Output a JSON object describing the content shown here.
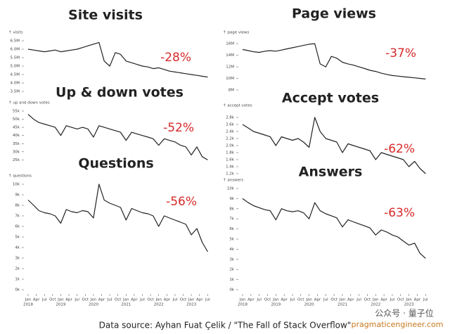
{
  "chart_data": [
    {
      "type": "line",
      "title": "Site visits",
      "y_label": "↑ visits",
      "annotation": "-28%",
      "color": "#222",
      "x": [
        2018,
        2018.17,
        2018.33,
        2018.5,
        2018.67,
        2018.83,
        2019,
        2019.17,
        2019.33,
        2019.5,
        2019.67,
        2019.83,
        2020,
        2020.17,
        2020.33,
        2020.5,
        2020.67,
        2020.83,
        2021,
        2021.17,
        2021.33,
        2021.5,
        2021.67,
        2021.83,
        2022,
        2022.17,
        2022.33,
        2022.5,
        2022.67,
        2022.83,
        2023,
        2023.17,
        2023.33,
        2023.5
      ],
      "values": [
        6000000,
        5950000,
        5900000,
        5850000,
        5900000,
        5950000,
        5850000,
        5900000,
        5950000,
        6000000,
        6100000,
        6200000,
        6300000,
        6400000,
        5300000,
        5000000,
        5800000,
        5700000,
        5300000,
        5200000,
        5100000,
        5000000,
        4950000,
        4850000,
        4900000,
        4800000,
        4700000,
        4650000,
        4600000,
        4550000,
        4500000,
        4450000,
        4400000,
        4350000
      ],
      "xlim": [
        2018,
        2023.6
      ],
      "ylim": [
        3500000,
        6500000
      ],
      "yticks": [
        {
          "value": 3500000,
          "label": "3.5M"
        },
        {
          "value": 4000000,
          "label": "4.0M"
        },
        {
          "value": 4500000,
          "label": "4.5M"
        },
        {
          "value": 5000000,
          "label": "5.0M"
        },
        {
          "value": 5500000,
          "label": "5.5M"
        },
        {
          "value": 6000000,
          "label": "6.0M"
        },
        {
          "value": 6500000,
          "label": "6.5M"
        }
      ]
    },
    {
      "type": "line",
      "title": "Page views",
      "y_label": "↑ page views",
      "annotation": "-37%",
      "color": "#222",
      "x": [
        2018,
        2018.17,
        2018.33,
        2018.5,
        2018.67,
        2018.83,
        2019,
        2019.17,
        2019.33,
        2019.5,
        2019.67,
        2019.83,
        2020,
        2020.17,
        2020.33,
        2020.5,
        2020.67,
        2020.83,
        2021,
        2021.17,
        2021.33,
        2021.5,
        2021.67,
        2021.83,
        2022,
        2022.17,
        2022.33,
        2022.5,
        2022.67,
        2022.83,
        2023,
        2023.17,
        2023.33,
        2023.5
      ],
      "values": [
        15000000,
        14800000,
        14600000,
        14500000,
        14700000,
        14800000,
        14700000,
        14900000,
        15100000,
        15300000,
        15500000,
        15700000,
        15900000,
        16000000,
        12500000,
        12000000,
        13800000,
        13500000,
        12800000,
        12500000,
        12300000,
        12000000,
        11700000,
        11400000,
        11200000,
        10900000,
        10700000,
        10500000,
        10400000,
        10300000,
        10200000,
        10100000,
        10000000,
        9900000
      ],
      "xlim": [
        2018,
        2023.6
      ],
      "ylim": [
        8000000,
        16500000
      ],
      "yticks": [
        {
          "value": 8000000,
          "label": "8M"
        },
        {
          "value": 10000000,
          "label": "10M"
        },
        {
          "value": 12000000,
          "label": "12M"
        },
        {
          "value": 14000000,
          "label": "14M"
        },
        {
          "value": 16000000,
          "label": "16M"
        }
      ]
    },
    {
      "type": "line",
      "title": "Up & down votes",
      "y_label": "↑ up and down votes",
      "annotation": "-52%",
      "color": "#222",
      "x": [
        2018,
        2018.17,
        2018.33,
        2018.5,
        2018.67,
        2018.83,
        2019,
        2019.17,
        2019.33,
        2019.5,
        2019.67,
        2019.83,
        2020,
        2020.17,
        2020.33,
        2020.5,
        2020.67,
        2020.83,
        2021,
        2021.17,
        2021.33,
        2021.5,
        2021.67,
        2021.83,
        2022,
        2022.17,
        2022.33,
        2022.5,
        2022.67,
        2022.83,
        2023,
        2023.17,
        2023.33,
        2023.5
      ],
      "values": [
        53000,
        50000,
        48000,
        47000,
        46000,
        45000,
        40000,
        46000,
        45000,
        44000,
        45000,
        44000,
        39000,
        46000,
        45000,
        44000,
        43000,
        42000,
        37000,
        42000,
        41000,
        40000,
        39000,
        38000,
        34000,
        38000,
        37000,
        36000,
        34000,
        33000,
        28000,
        33000,
        27000,
        25000
      ],
      "xlim": [
        2018,
        2023.6
      ],
      "ylim": [
        23000,
        55000
      ],
      "yticks": [
        {
          "value": 25000,
          "label": "25k"
        },
        {
          "value": 30000,
          "label": "30k"
        },
        {
          "value": 35000,
          "label": "35k"
        },
        {
          "value": 40000,
          "label": "40k"
        },
        {
          "value": 45000,
          "label": "45k"
        },
        {
          "value": 50000,
          "label": "50k"
        },
        {
          "value": 55000,
          "label": "55k"
        }
      ]
    },
    {
      "type": "line",
      "title": "Accept votes",
      "y_label": "↑ accept votes",
      "annotation": "-62%",
      "color": "#222",
      "x": [
        2018,
        2018.17,
        2018.33,
        2018.5,
        2018.67,
        2018.83,
        2019,
        2019.17,
        2019.33,
        2019.5,
        2019.67,
        2019.83,
        2020,
        2020.17,
        2020.33,
        2020.5,
        2020.67,
        2020.83,
        2021,
        2021.17,
        2021.33,
        2021.5,
        2021.67,
        2021.83,
        2022,
        2022.17,
        2022.33,
        2022.5,
        2022.67,
        2022.83,
        2023,
        2023.17,
        2023.33,
        2023.5
      ],
      "values": [
        2600,
        2500,
        2400,
        2350,
        2300,
        2250,
        2000,
        2250,
        2200,
        2150,
        2200,
        2100,
        1950,
        2800,
        2400,
        2200,
        2150,
        2100,
        1800,
        2050,
        2000,
        1950,
        1900,
        1850,
        1600,
        1800,
        1750,
        1700,
        1650,
        1600,
        1400,
        1550,
        1350,
        1200
      ],
      "xlim": [
        2018,
        2023.6
      ],
      "ylim": [
        1100,
        2900
      ],
      "yticks": [
        {
          "value": 1200,
          "label": "1.2k"
        },
        {
          "value": 1400,
          "label": "1.4k"
        },
        {
          "value": 1600,
          "label": "1.6k"
        },
        {
          "value": 1800,
          "label": "1.8k"
        },
        {
          "value": 2000,
          "label": "2.0k"
        },
        {
          "value": 2200,
          "label": "2.2k"
        },
        {
          "value": 2400,
          "label": "2.4k"
        },
        {
          "value": 2600,
          "label": "2.6k"
        },
        {
          "value": 2800,
          "label": "2.8k"
        }
      ]
    },
    {
      "type": "line",
      "title": "Questions",
      "y_label": "↑ questions",
      "annotation": "-56%",
      "color": "#222",
      "x": [
        2018,
        2018.17,
        2018.33,
        2018.5,
        2018.67,
        2018.83,
        2019,
        2019.17,
        2019.33,
        2019.5,
        2019.67,
        2019.83,
        2020,
        2020.17,
        2020.33,
        2020.5,
        2020.67,
        2020.83,
        2021,
        2021.17,
        2021.33,
        2021.5,
        2021.67,
        2021.83,
        2022,
        2022.17,
        2022.33,
        2022.5,
        2022.67,
        2022.83,
        2023,
        2023.17,
        2023.33,
        2023.5
      ],
      "values": [
        8500,
        8000,
        7500,
        7300,
        7200,
        7000,
        6300,
        7600,
        7400,
        7300,
        7500,
        7400,
        6800,
        10000,
        8500,
        8200,
        8000,
        7800,
        6600,
        7700,
        7500,
        7300,
        7200,
        7000,
        6000,
        7000,
        6800,
        6600,
        6400,
        6200,
        5200,
        5800,
        4500,
        3600
      ],
      "xlim": [
        2018,
        2023.6
      ],
      "ylim": [
        0,
        10000
      ],
      "yticks": [
        {
          "value": 0,
          "label": "0k"
        },
        {
          "value": 1000,
          "label": "1k"
        },
        {
          "value": 2000,
          "label": "2k"
        },
        {
          "value": 3000,
          "label": "3k"
        },
        {
          "value": 4000,
          "label": "4k"
        },
        {
          "value": 5000,
          "label": "5k"
        },
        {
          "value": 6000,
          "label": "6k"
        },
        {
          "value": 7000,
          "label": "7k"
        },
        {
          "value": 8000,
          "label": "8k"
        },
        {
          "value": 9000,
          "label": "9k"
        },
        {
          "value": 10000,
          "label": "10k"
        }
      ],
      "xticks": [
        {
          "value": 2018,
          "label": "Jan"
        },
        {
          "value": 2018.25,
          "label": "Apr"
        },
        {
          "value": 2018.5,
          "label": "Jul"
        },
        {
          "value": 2018.75,
          "label": "Oct"
        },
        {
          "value": 2019,
          "label": "Jan"
        },
        {
          "value": 2019.25,
          "label": "Apr"
        },
        {
          "value": 2019.5,
          "label": "Jul"
        },
        {
          "value": 2019.75,
          "label": "Oct"
        },
        {
          "value": 2020,
          "label": "Jan"
        },
        {
          "value": 2020.25,
          "label": "Apr"
        },
        {
          "value": 2020.5,
          "label": "Jul"
        },
        {
          "value": 2020.75,
          "label": "Oct"
        },
        {
          "value": 2021,
          "label": "Jan"
        },
        {
          "value": 2021.25,
          "label": "Apr"
        },
        {
          "value": 2021.5,
          "label": "Jul"
        },
        {
          "value": 2021.75,
          "label": "Oct"
        },
        {
          "value": 2022,
          "label": "Jan"
        },
        {
          "value": 2022.25,
          "label": "Apr"
        },
        {
          "value": 2022.5,
          "label": "Jul"
        },
        {
          "value": 2022.75,
          "label": "Oct"
        },
        {
          "value": 2023,
          "label": "Jan"
        },
        {
          "value": 2023.25,
          "label": "Apr"
        },
        {
          "value": 2023.5,
          "label": "Jul"
        }
      ],
      "year_ticks": [
        2018,
        2019,
        2020,
        2021,
        2022,
        2023
      ]
    },
    {
      "type": "line",
      "title": "Answers",
      "y_label": "↑ answers",
      "annotation": "-63%",
      "color": "#222",
      "x": [
        2018,
        2018.17,
        2018.33,
        2018.5,
        2018.67,
        2018.83,
        2019,
        2019.17,
        2019.33,
        2019.5,
        2019.67,
        2019.83,
        2020,
        2020.17,
        2020.33,
        2020.5,
        2020.67,
        2020.83,
        2021,
        2021.17,
        2021.33,
        2021.5,
        2021.67,
        2021.83,
        2022,
        2022.17,
        2022.33,
        2022.5,
        2022.67,
        2022.83,
        2023,
        2023.17,
        2023.33,
        2023.5
      ],
      "values": [
        9000,
        8600,
        8300,
        8100,
        7900,
        7800,
        6900,
        8000,
        7800,
        7700,
        7800,
        7600,
        7000,
        8600,
        7800,
        7500,
        7300,
        7100,
        6200,
        6900,
        6700,
        6500,
        6300,
        6100,
        5400,
        5900,
        5700,
        5400,
        5200,
        4800,
        4400,
        4600,
        3600,
        3100
      ],
      "xlim": [
        2018,
        2023.6
      ],
      "ylim": [
        0,
        10000
      ],
      "yticks": [
        {
          "value": 0,
          "label": "0k"
        },
        {
          "value": 1000,
          "label": "1k"
        },
        {
          "value": 2000,
          "label": "2k"
        },
        {
          "value": 3000,
          "label": "3k"
        },
        {
          "value": 4000,
          "label": "4k"
        },
        {
          "value": 5000,
          "label": "5k"
        },
        {
          "value": 6000,
          "label": "6k"
        },
        {
          "value": 7000,
          "label": "7k"
        },
        {
          "value": 8000,
          "label": "8k"
        },
        {
          "value": 9000,
          "label": "9k"
        },
        {
          "value": 10000,
          "label": "10k"
        }
      ],
      "xticks": [
        {
          "value": 2018,
          "label": "Jan"
        },
        {
          "value": 2018.25,
          "label": "Apr"
        },
        {
          "value": 2018.5,
          "label": "Jul"
        },
        {
          "value": 2018.75,
          "label": "Oct"
        },
        {
          "value": 2019,
          "label": "Jan"
        },
        {
          "value": 2019.25,
          "label": "Apr"
        },
        {
          "value": 2019.5,
          "label": "Jul"
        },
        {
          "value": 2019.75,
          "label": "Oct"
        },
        {
          "value": 2020,
          "label": "Jan"
        },
        {
          "value": 2020.25,
          "label": "Apr"
        },
        {
          "value": 2020.5,
          "label": "Jul"
        },
        {
          "value": 2020.75,
          "label": "Oct"
        },
        {
          "value": 2021,
          "label": "Jan"
        },
        {
          "value": 2021.25,
          "label": "Apr"
        },
        {
          "value": 2021.5,
          "label": "Jul"
        },
        {
          "value": 2021.75,
          "label": "Oct"
        },
        {
          "value": 2022,
          "label": "Jan"
        },
        {
          "value": 2022.25,
          "label": "Apr"
        },
        {
          "value": 2022.5,
          "label": "Jul"
        },
        {
          "value": 2022.75,
          "label": "Oct"
        },
        {
          "value": 2023,
          "label": "Jan"
        },
        {
          "value": 2023.25,
          "label": "Apr"
        },
        {
          "value": 2023.5,
          "label": "Jul"
        }
      ],
      "year_ticks": [
        2018,
        2019,
        2020,
        2021,
        2022,
        2023
      ]
    }
  ],
  "source": "Data source: Ayhan Fuat Çelik / \"The Fall of Stack Overflow\"",
  "watermark": {
    "account": "公众号 · 量子位",
    "site": "pragmaticengineer.com"
  }
}
